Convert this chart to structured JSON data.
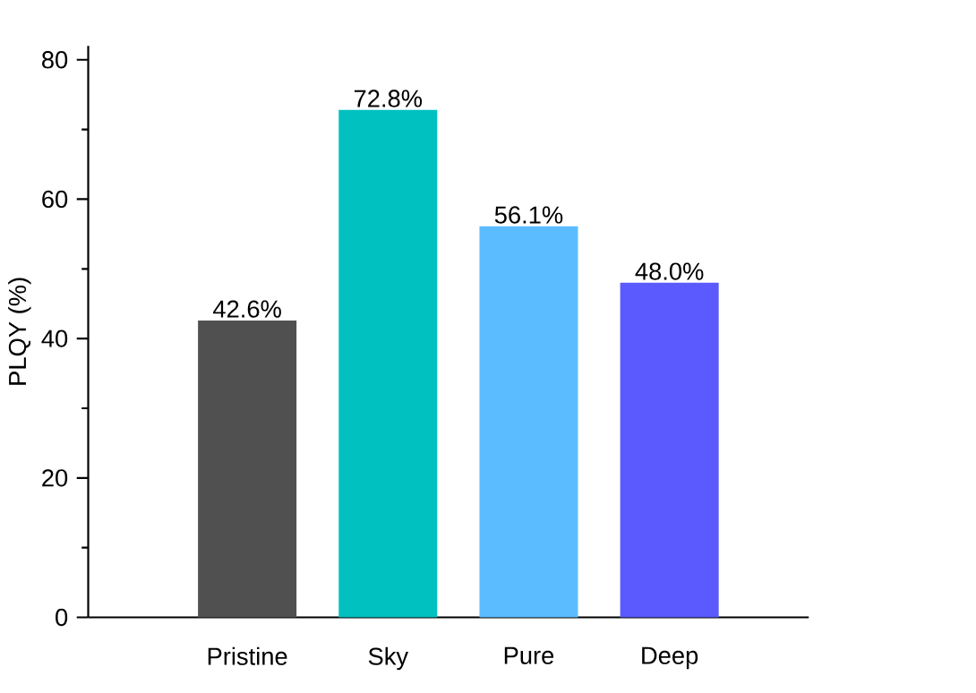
{
  "chart_data": {
    "type": "bar",
    "ylabel": "PLQY (%)",
    "categories": [
      "Pristine",
      "Sky",
      "Pure",
      "Deep"
    ],
    "values": [
      42.6,
      72.8,
      56.1,
      48.0
    ],
    "colors": [
      "#505050",
      "#00c0c0",
      "#5bbdff",
      "#5a5aff"
    ],
    "value_labels": [
      "42.6%",
      "72.8%",
      "56.1%",
      "48.0%"
    ],
    "ylim": [
      0,
      82
    ],
    "yticks": [
      0,
      20,
      40,
      60,
      80
    ],
    "grid": false
  }
}
